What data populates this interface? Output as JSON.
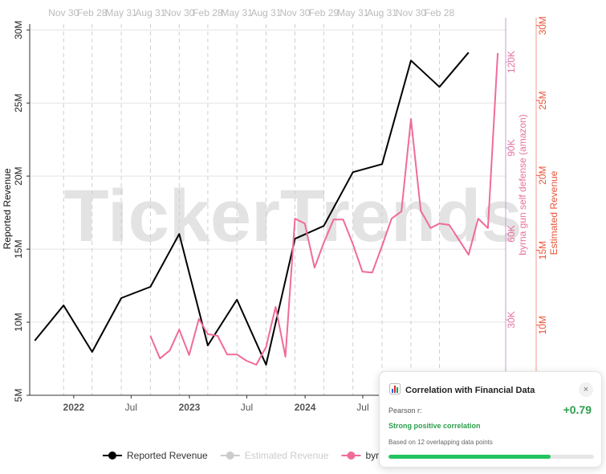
{
  "chart_data": {
    "type": "line",
    "watermark": "TickerTrends",
    "xlim": [
      "2021-08-15",
      "2025-09-25"
    ],
    "xticks": [
      {
        "value": "2022-01-01",
        "label": "2022"
      },
      {
        "value": "2022-07-01",
        "label": "Jul"
      },
      {
        "value": "2023-01-01",
        "label": "2023"
      },
      {
        "value": "2023-07-01",
        "label": "Jul"
      },
      {
        "value": "2024-01-01",
        "label": "2024"
      },
      {
        "value": "2024-07-01",
        "label": "Jul"
      }
    ],
    "x2ticks": [
      {
        "value": "2021-11-30",
        "label": "Nov 30"
      },
      {
        "value": "2022-02-28",
        "label": "Feb 28"
      },
      {
        "value": "2022-05-31",
        "label": "May 31"
      },
      {
        "value": "2022-08-31",
        "label": "Aug 31"
      },
      {
        "value": "2022-11-30",
        "label": "Nov 30"
      },
      {
        "value": "2023-02-28",
        "label": "Feb 28"
      },
      {
        "value": "2023-05-31",
        "label": "May 31"
      },
      {
        "value": "2023-08-31",
        "label": "Aug 31"
      },
      {
        "value": "2023-11-30",
        "label": "Nov 30"
      },
      {
        "value": "2024-02-29",
        "label": "Feb 29"
      },
      {
        "value": "2024-05-31",
        "label": "May 31"
      },
      {
        "value": "2024-08-31",
        "label": "Aug 31"
      },
      {
        "value": "2024-11-30",
        "label": "Nov 30"
      },
      {
        "value": "2025-02-28",
        "label": "Feb 28"
      }
    ],
    "ylabel": "Reported Revenue",
    "ylim": [
      5000000,
      30400000
    ],
    "yticks": [
      {
        "value": 5000000,
        "label": "5M"
      },
      {
        "value": 10000000,
        "label": "10M"
      },
      {
        "value": 15000000,
        "label": "15M"
      },
      {
        "value": 20000000,
        "label": "20M"
      },
      {
        "value": 25000000,
        "label": "25M"
      },
      {
        "value": 30000000,
        "label": "30M"
      }
    ],
    "y2label": "byrna gun self defense  (amazon)",
    "y2lim": [
      3650,
      133200
    ],
    "y2ticks": [
      {
        "value": 30000,
        "label": "30K"
      },
      {
        "value": 60000,
        "label": "60K"
      },
      {
        "value": 90000,
        "label": "90K"
      },
      {
        "value": 120000,
        "label": "120K"
      }
    ],
    "y3label": "Estimated Revenue",
    "y3lim": [
      5320000,
      30100000
    ],
    "y3ticks": [
      {
        "value": 10000000,
        "label": "10M"
      },
      {
        "value": 15000000,
        "label": "15M"
      },
      {
        "value": 20000000,
        "label": "20M"
      },
      {
        "value": 25000000,
        "label": "25M"
      },
      {
        "value": 30000000,
        "label": "30M"
      }
    ],
    "y2color": "#e8729c",
    "y3color": "#e8553a",
    "grid": true,
    "series": [
      {
        "name": "Reported Revenue",
        "color": "#000000",
        "axis": "y",
        "x": [
          "2021-08-31",
          "2021-11-30",
          "2022-02-28",
          "2022-05-31",
          "2022-08-31",
          "2022-11-30",
          "2023-02-28",
          "2023-05-31",
          "2023-08-31",
          "2023-11-30",
          "2024-02-29",
          "2024-05-31",
          "2024-08-31",
          "2024-11-30",
          "2025-02-28",
          "2025-05-31"
        ],
        "values": [
          8740000,
          11150000,
          7970000,
          11650000,
          12420000,
          16040000,
          8410000,
          11540000,
          7090000,
          15710000,
          16590000,
          20270000,
          20820000,
          27910000,
          26100000,
          28460000
        ]
      },
      {
        "name": "Estimated Revenue",
        "color": "#cccccc",
        "axis": "y3",
        "visible": false
      },
      {
        "name": "byrna gun self defense  (amazon)",
        "color": "#f06b9b",
        "axis": "y2",
        "x": [
          "2022-08-31",
          "2022-09-30",
          "2022-10-31",
          "2022-11-30",
          "2022-12-31",
          "2023-01-31",
          "2023-02-28",
          "2023-03-31",
          "2023-04-30",
          "2023-05-31",
          "2023-06-30",
          "2023-07-31",
          "2023-08-31",
          "2023-09-30",
          "2023-10-31",
          "2023-11-30",
          "2023-12-31",
          "2024-01-31",
          "2024-02-29",
          "2024-03-31",
          "2024-04-30",
          "2024-05-31",
          "2024-06-30",
          "2024-07-31",
          "2024-08-31",
          "2024-09-30",
          "2024-10-31",
          "2024-11-30",
          "2024-12-31",
          "2025-01-31",
          "2025-02-28",
          "2025-03-31",
          "2025-04-30",
          "2025-05-31",
          "2025-06-30",
          "2025-07-31",
          "2025-08-31"
        ],
        "values": [
          24400,
          16500,
          19300,
          26600,
          17700,
          30300,
          25000,
          24400,
          17900,
          17900,
          15700,
          14300,
          20500,
          34500,
          17100,
          65300,
          63600,
          48200,
          56900,
          65000,
          65000,
          56400,
          46800,
          46500,
          55800,
          65300,
          67800,
          100100,
          68100,
          62000,
          63600,
          63100,
          58000,
          52700,
          65300,
          62000,
          123100
        ]
      }
    ]
  },
  "popup": {
    "title": "Correlation with Financial Data",
    "close": "×",
    "pearson_label": "Pearson r:",
    "pearson_r": {
      "value": 0.79,
      "label": "+0.79"
    },
    "strength": "Strong positive correlation",
    "note": "Based on 12 overlapping data points"
  }
}
